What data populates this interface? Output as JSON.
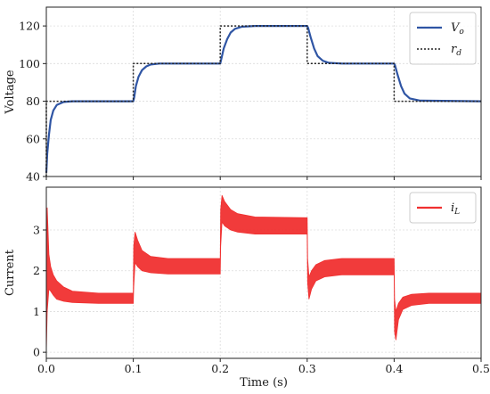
{
  "chart_data": [
    {
      "type": "line",
      "xlabel": "",
      "ylabel": "Voltage",
      "xlim": [
        0.0,
        0.5
      ],
      "ylim": [
        40,
        130
      ],
      "xticks": [
        0.0,
        0.1,
        0.2,
        0.3,
        0.4,
        0.5
      ],
      "yticks": [
        "40",
        "60",
        "80",
        "100",
        "120"
      ],
      "grid": true,
      "legend_position": "top-right",
      "legend": [
        {
          "symbol": "V",
          "subscript": "o",
          "style": "solid",
          "color": "#2f55a4"
        },
        {
          "symbol": "r",
          "subscript": "d",
          "style": "dotted",
          "color": "#222222"
        }
      ],
      "series": [
        {
          "name": "Vo",
          "color": "#2f55a4",
          "x": [
            0.0,
            0.001,
            0.003,
            0.005,
            0.008,
            0.012,
            0.02,
            0.03,
            0.05,
            0.1,
            0.101,
            0.103,
            0.106,
            0.11,
            0.115,
            0.12,
            0.13,
            0.2,
            0.201,
            0.204,
            0.208,
            0.212,
            0.217,
            0.225,
            0.24,
            0.3,
            0.301,
            0.304,
            0.308,
            0.312,
            0.318,
            0.325,
            0.34,
            0.4,
            0.401,
            0.404,
            0.408,
            0.412,
            0.418,
            0.43,
            0.5
          ],
          "values": [
            42,
            52,
            62,
            70,
            75,
            78,
            79.6,
            80,
            80,
            80,
            82,
            88,
            93,
            96.5,
            98.5,
            99.5,
            100,
            100,
            102,
            108,
            113,
            116.5,
            118.5,
            119.6,
            120,
            120,
            119,
            114,
            108,
            104,
            101.5,
            100.4,
            100,
            100,
            99,
            94,
            88,
            84,
            81.5,
            80.3,
            80
          ]
        },
        {
          "name": "rd",
          "color": "#222222",
          "x": [
            0.0,
            0.0,
            0.1,
            0.1,
            0.2,
            0.2,
            0.3,
            0.3,
            0.4,
            0.4,
            0.5
          ],
          "values": [
            40,
            80,
            80,
            100,
            100,
            120,
            120,
            100,
            100,
            80,
            80
          ]
        }
      ]
    },
    {
      "type": "area",
      "xlabel": "Time (s)",
      "ylabel": "Current",
      "xlim": [
        0.0,
        0.5
      ],
      "ylim": [
        -0.15,
        4.05
      ],
      "xticks": [
        "0.0",
        "0.1",
        "0.2",
        "0.3",
        "0.4",
        "0.5"
      ],
      "yticks": [
        "0",
        "1",
        "2",
        "3"
      ],
      "grid": true,
      "legend_position": "top-right",
      "legend": [
        {
          "symbol": "i",
          "subscript": "L",
          "style": "solid",
          "color": "#f03030"
        }
      ],
      "series": [
        {
          "name": "iL",
          "color": "#f03030",
          "band": true,
          "x": [
            0.0,
            0.001,
            0.003,
            0.005,
            0.008,
            0.012,
            0.02,
            0.03,
            0.06,
            0.1,
            0.1005,
            0.102,
            0.105,
            0.11,
            0.12,
            0.14,
            0.2,
            0.2005,
            0.202,
            0.205,
            0.212,
            0.22,
            0.24,
            0.3,
            0.3005,
            0.302,
            0.305,
            0.31,
            0.32,
            0.34,
            0.4,
            0.4005,
            0.402,
            0.405,
            0.41,
            0.42,
            0.44,
            0.5
          ],
          "upper": [
            0.2,
            3.55,
            2.4,
            2.1,
            1.9,
            1.75,
            1.6,
            1.5,
            1.45,
            1.45,
            2.6,
            2.95,
            2.75,
            2.5,
            2.35,
            2.3,
            2.3,
            3.5,
            3.85,
            3.7,
            3.5,
            3.4,
            3.32,
            3.3,
            2.3,
            1.85,
            2.0,
            2.15,
            2.25,
            2.3,
            2.3,
            1.3,
            1.0,
            1.2,
            1.35,
            1.42,
            1.45,
            1.45
          ],
          "lower": [
            0.0,
            1.0,
            1.55,
            1.5,
            1.4,
            1.3,
            1.25,
            1.22,
            1.2,
            1.2,
            1.6,
            2.2,
            2.1,
            2.0,
            1.95,
            1.92,
            1.92,
            2.6,
            3.2,
            3.1,
            3.0,
            2.95,
            2.9,
            2.9,
            1.7,
            1.3,
            1.55,
            1.75,
            1.85,
            1.9,
            1.9,
            0.5,
            0.3,
            0.8,
            1.05,
            1.15,
            1.2,
            1.2
          ]
        }
      ]
    }
  ]
}
